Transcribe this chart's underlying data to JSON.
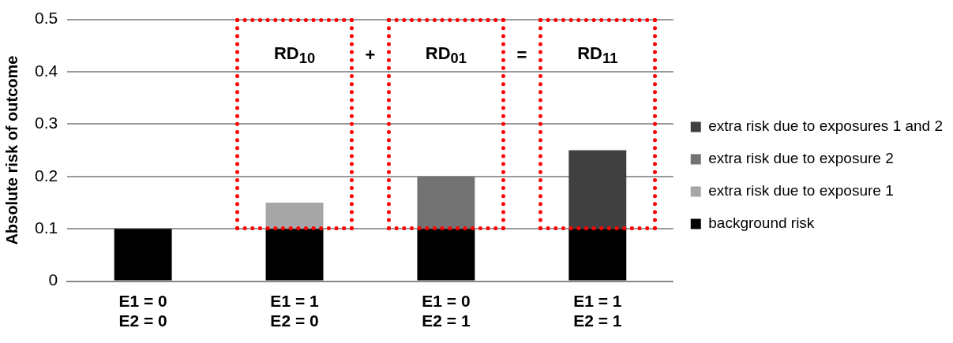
{
  "chart_data": {
    "type": "bar",
    "stacked": true,
    "ylabel": "Absolute risk of outcome",
    "categories": [
      "E1 = 0\nE2 = 0",
      "E1 = 1\nE2 = 0",
      "E1 = 0\nE2 = 1",
      "E1 = 1\nE2 = 1"
    ],
    "series": [
      {
        "name": "background risk",
        "color": "#000000",
        "values": [
          0.1,
          0.1,
          0.1,
          0.1
        ]
      },
      {
        "name": "extra risk due to exposure 1",
        "color": "#a6a6a6",
        "values": [
          0,
          0.05,
          0,
          0
        ]
      },
      {
        "name": "extra risk due to exposure 2",
        "color": "#737373",
        "values": [
          0,
          0,
          0.1,
          0
        ]
      },
      {
        "name": "extra risk due to exposures 1 and 2",
        "color": "#404040",
        "values": [
          0,
          0,
          0,
          0.15
        ]
      }
    ],
    "ylim": [
      0,
      0.5
    ],
    "yticks": [
      0,
      0.1,
      0.2,
      0.3,
      0.4,
      0.5
    ],
    "grid": "y",
    "legend": "right",
    "annotations": [
      "RD$_{10}$",
      "+",
      "RD$_{01}$",
      "=",
      "RD$_{11}$"
    ]
  }
}
